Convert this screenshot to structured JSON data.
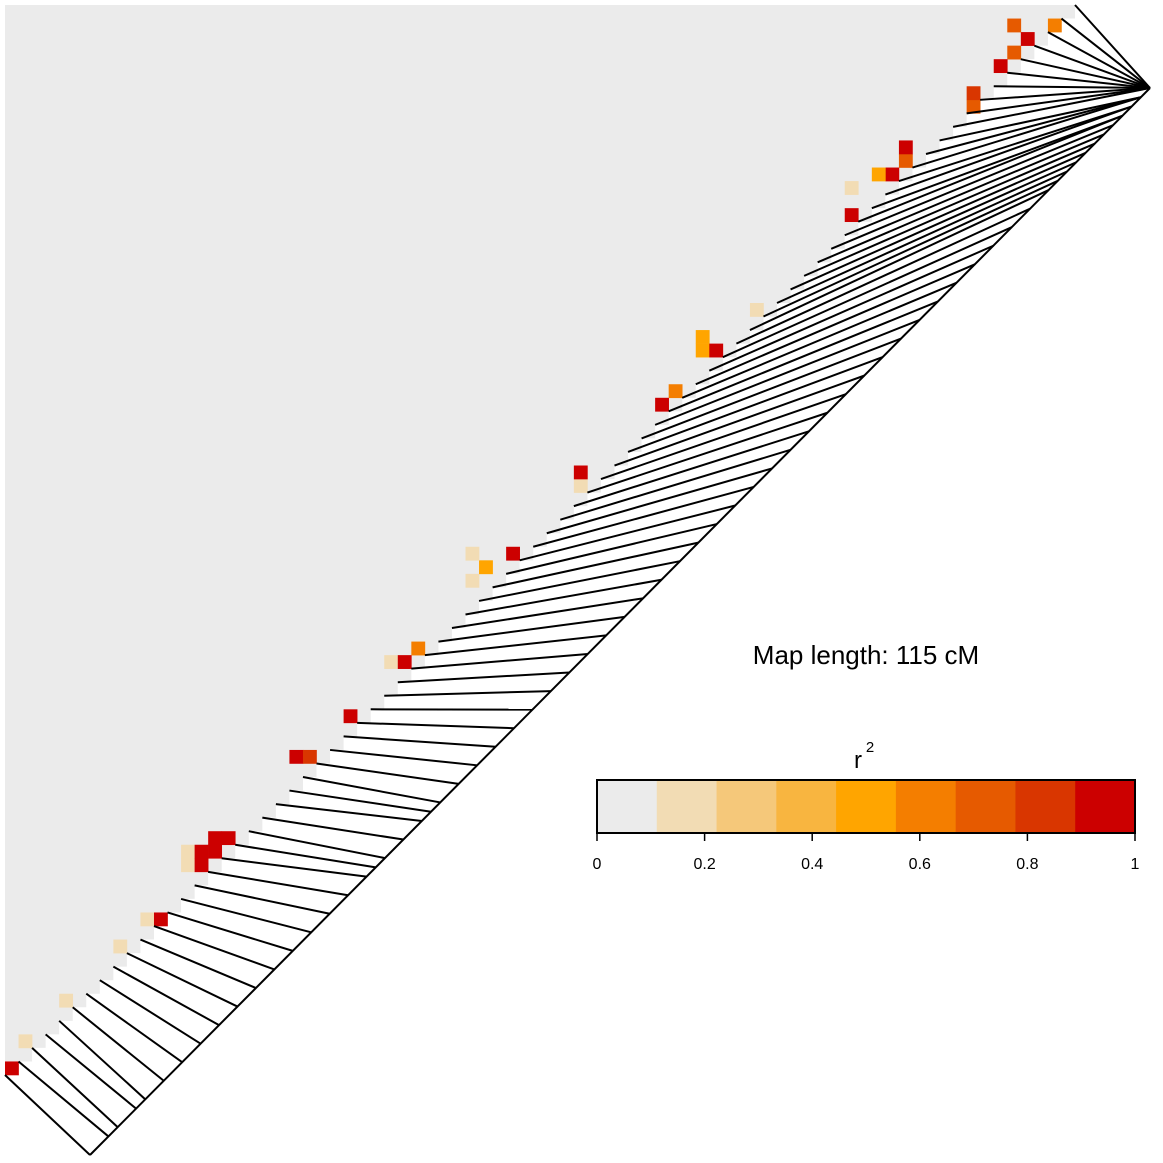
{
  "chart_data": {
    "type": "ld-heatmap",
    "annotation": "Map length: 115 cM",
    "maplim": [
      0,
      115
    ],
    "marker_positions": [
      0,
      2,
      3,
      5,
      6,
      8,
      10,
      12,
      14,
      16,
      18,
      20,
      22,
      24,
      26,
      28,
      30,
      31,
      32,
      34,
      36,
      37,
      38,
      40,
      42,
      44,
      46,
      48,
      50,
      52,
      54,
      56,
      58,
      60,
      62,
      64,
      66,
      68,
      70,
      72,
      74,
      76,
      78,
      80,
      82,
      84,
      86,
      88,
      90,
      92,
      94,
      96,
      98,
      100,
      102,
      104,
      105,
      106,
      107,
      108,
      109,
      110,
      111,
      112,
      112,
      113,
      113,
      114,
      114,
      114,
      115,
      115,
      115,
      115,
      115,
      115,
      115,
      115,
      115,
      115
    ],
    "cells": [
      [
        0,
        1,
        0.95
      ],
      [
        1,
        3,
        0.15
      ],
      [
        4,
        6,
        0.15
      ],
      [
        8,
        10,
        0.15
      ],
      [
        10,
        12,
        0.15
      ],
      [
        11,
        12,
        0.95
      ],
      [
        13,
        17,
        0.15
      ],
      [
        13,
        16,
        0.15
      ],
      [
        14,
        17,
        0.95
      ],
      [
        14,
        16,
        0.95
      ],
      [
        15,
        17,
        0.95
      ],
      [
        15,
        18,
        0.9
      ],
      [
        16,
        18,
        0.95
      ],
      [
        21,
        24,
        0.95
      ],
      [
        22,
        24,
        0.8
      ],
      [
        25,
        27,
        0.95
      ],
      [
        28,
        31,
        0.15
      ],
      [
        29,
        31,
        0.95
      ],
      [
        30,
        32,
        0.6
      ],
      [
        34,
        37,
        0.2
      ],
      [
        35,
        38,
        0.45
      ],
      [
        37,
        39,
        0.9
      ],
      [
        34,
        39,
        0.15
      ],
      [
        42,
        44,
        0.2
      ],
      [
        42,
        45,
        0.95
      ],
      [
        48,
        50,
        0.95
      ],
      [
        49,
        51,
        0.6
      ],
      [
        51,
        54,
        0.45
      ],
      [
        51,
        55,
        0.45
      ],
      [
        52,
        54,
        0.9
      ],
      [
        55,
        57,
        0.2
      ],
      [
        62,
        64,
        0.9
      ],
      [
        65,
        67,
        0.95
      ],
      [
        66,
        68,
        0.7
      ],
      [
        66,
        69,
        0.95
      ],
      [
        71,
        72,
        0.7
      ],
      [
        71,
        73,
        0.8
      ],
      [
        73,
        75,
        0.95
      ],
      [
        74,
        76,
        0.7
      ],
      [
        75,
        77,
        0.95
      ],
      [
        77,
        78,
        0.6
      ],
      [
        74,
        78,
        0.7
      ],
      [
        62,
        66,
        0.15
      ],
      [
        64,
        67,
        0.45
      ]
    ],
    "legend": {
      "title": "r",
      "title_superscript": "2",
      "colors": [
        "#ebebeb",
        "#f2dcb4",
        "#f5c87a",
        "#f8b540",
        "#ffa500",
        "#f47e00",
        "#e65a00",
        "#d93600",
        "#cc0000"
      ],
      "lim": [
        0,
        1
      ],
      "ticks": [
        0,
        0.2,
        0.4,
        0.6,
        0.8,
        1
      ]
    }
  }
}
